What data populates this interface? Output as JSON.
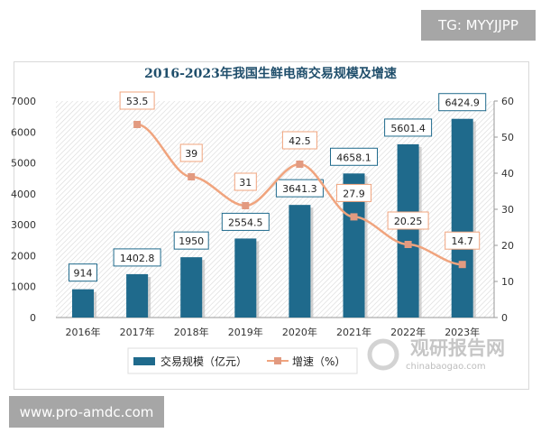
{
  "watermarks": {
    "top": "TG: MYYJJPP",
    "bottom": "www.pro-amdc.com",
    "logo": "观研报告网",
    "logo_url": "chinabaogao.com"
  },
  "colors": {
    "bar": "#1f6a8c",
    "line": "#f0a47e",
    "title": "#1f4e6b"
  },
  "chart_data": {
    "type": "bar+line",
    "title": "2016-2023年我国生鲜电商交易规模及增速",
    "categories": [
      "2016年",
      "2017年",
      "2018年",
      "2019年",
      "2020年",
      "2021年",
      "2022年",
      "2023年"
    ],
    "series": [
      {
        "name": "交易规模（亿元）",
        "type": "bar",
        "axis": "left",
        "values": [
          914,
          1402.8,
          1950,
          2554.5,
          3641.3,
          4658.1,
          5601.4,
          6424.9
        ],
        "labels": [
          "914",
          "1402.8",
          "1950",
          "2554.5",
          "3641.3",
          "4658.1",
          "5601.4",
          "6424.9"
        ]
      },
      {
        "name": "增速（%）",
        "type": "line",
        "axis": "right",
        "values": [
          null,
          53.5,
          39,
          31,
          42.5,
          27.9,
          20.25,
          14.7
        ],
        "labels": [
          "",
          "53.5",
          "39",
          "31",
          "42.5",
          "27.9",
          "20.25",
          "14.7"
        ]
      }
    ],
    "ylim_left": [
      0,
      7000
    ],
    "yticks_left": [
      "0",
      "1000",
      "2000",
      "3000",
      "4000",
      "5000",
      "6000",
      "7000"
    ],
    "ylim_right": [
      0,
      60
    ],
    "yticks_right": [
      "0",
      "10",
      "20",
      "30",
      "40",
      "50",
      "60"
    ],
    "legend": "bottom",
    "grid": false
  }
}
